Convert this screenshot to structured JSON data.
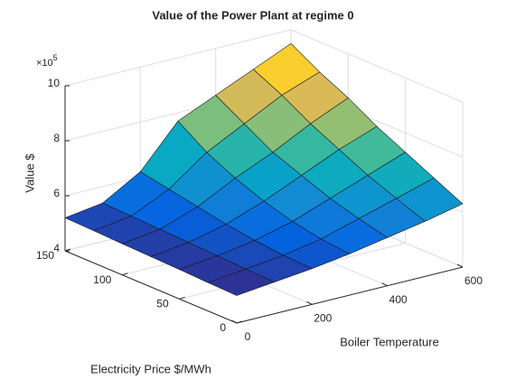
{
  "chart_data": {
    "type": "surface",
    "title": "Value of the Power Plant at regime 0",
    "x_label": "Boiler Temperature",
    "y_label": "Electricity Price $/MWh",
    "z_label": "Value $",
    "z_multiplier": {
      "base": "×10",
      "exponent": "5"
    },
    "colormap": "parula",
    "grid": true,
    "x": [
      0,
      100,
      200,
      300,
      400,
      500,
      600
    ],
    "y": [
      0,
      25,
      50,
      75,
      100,
      125,
      150
    ],
    "z": [
      [
        5.0,
        5.15,
        5.3,
        5.5,
        5.75,
        6.0,
        6.3
      ],
      [
        5.03,
        5.19,
        5.35,
        5.6,
        6.0,
        6.4,
        6.8
      ],
      [
        5.07,
        5.23,
        5.45,
        5.8,
        6.3,
        6.8,
        7.3
      ],
      [
        5.1,
        5.28,
        5.6,
        6.1,
        6.7,
        7.3,
        7.8
      ],
      [
        5.13,
        5.32,
        5.8,
        6.5,
        7.1,
        7.8,
        8.4
      ],
      [
        5.17,
        5.36,
        6.0,
        7.0,
        7.7,
        8.4,
        8.9
      ],
      [
        5.2,
        5.4,
        6.2,
        7.7,
        8.3,
        8.9,
        9.5
      ]
    ],
    "xlim": [
      0,
      600
    ],
    "xticks": [
      0,
      200,
      400,
      600
    ],
    "ylim": [
      0,
      150
    ],
    "yticks": [
      0,
      50,
      100,
      150
    ],
    "zlim": [
      4,
      10
    ],
    "zticks": [
      4,
      6,
      8,
      10
    ]
  }
}
